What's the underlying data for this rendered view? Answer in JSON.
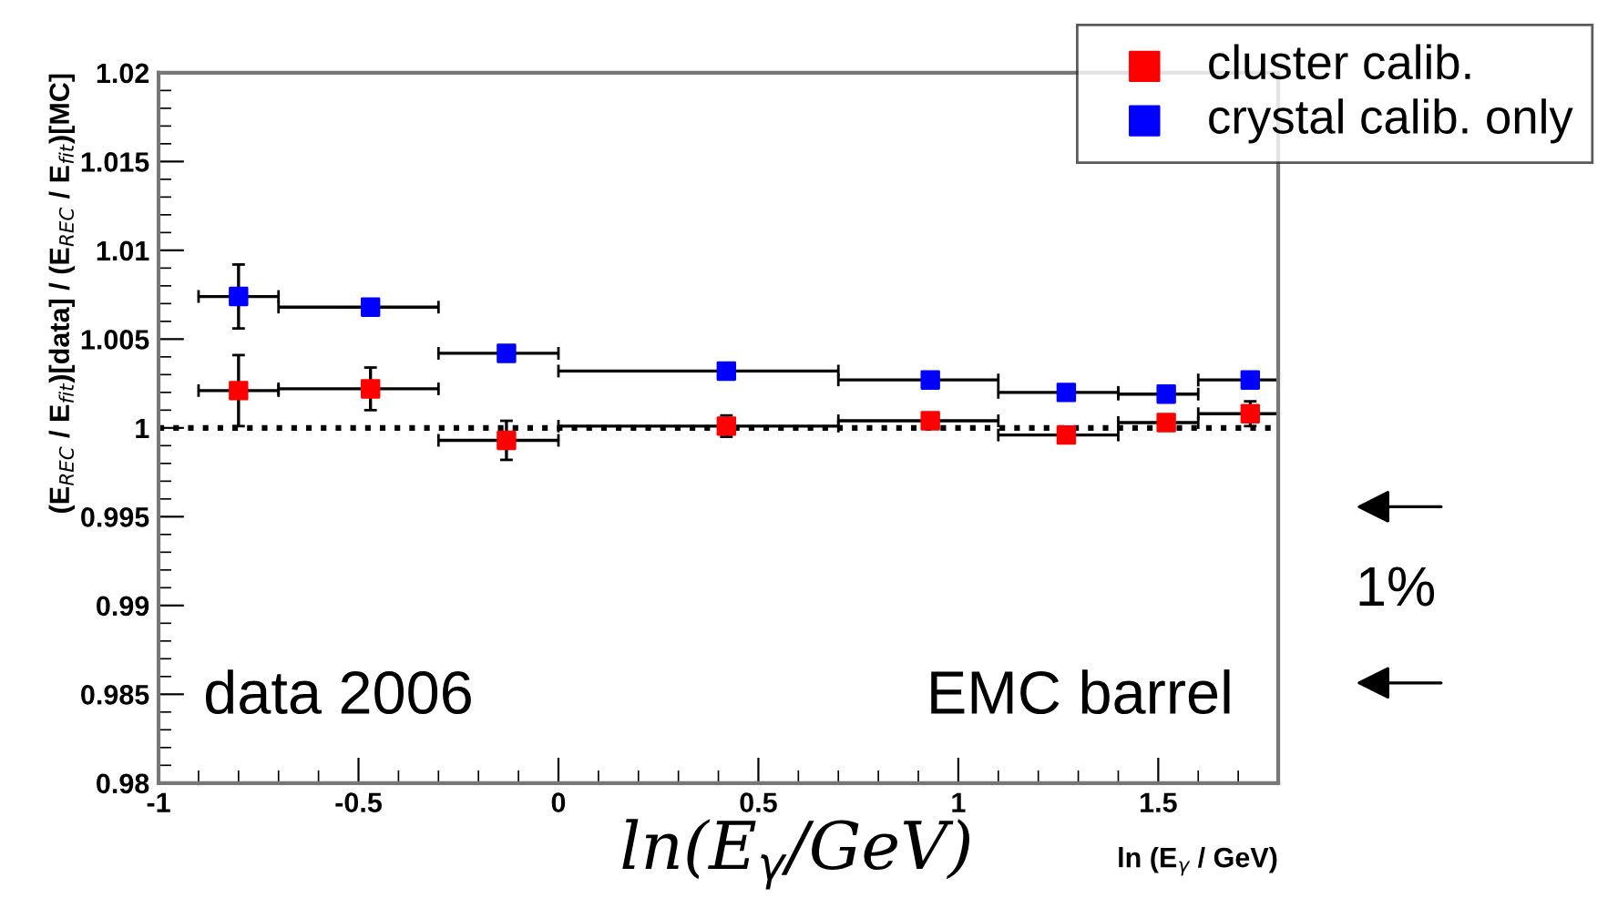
{
  "chart_data": {
    "type": "scatter",
    "xlabel": "ln (E$_{γ}$ / GeV)",
    "ylabel": "(E$_{REC}$ / E$_{fit}$)[data] / (E$_{REC}$ / E$_{fit}$)[MC]",
    "x": [
      -0.8,
      -0.47,
      -0.13,
      0.42,
      0.93,
      1.27,
      1.52,
      1.73
    ],
    "series": [
      {
        "name": "cluster calib.",
        "color": "#ff0000",
        "values": [
          1.0021,
          1.0022,
          0.9993,
          1.0001,
          1.0004,
          0.9996,
          1.0003,
          1.0008
        ],
        "errors": [
          0.002,
          0.0012,
          0.0011,
          0.0006,
          null,
          null,
          null,
          0.0007
        ],
        "xerrors": [
          [
            -0.9,
            -0.7
          ],
          [
            -0.7,
            -0.3
          ],
          [
            -0.3,
            0.0
          ],
          [
            0.0,
            0.7
          ],
          [
            0.7,
            1.1
          ],
          [
            1.1,
            1.4
          ],
          [
            1.4,
            1.6
          ],
          [
            1.6,
            1.8
          ]
        ]
      },
      {
        "name": "crystal calib. only",
        "color": "#0000ff",
        "values": [
          1.0074,
          1.0068,
          1.0042,
          1.0032,
          1.0027,
          1.002,
          1.0019,
          1.0027
        ],
        "errors": [
          0.0018,
          null,
          null,
          null,
          null,
          null,
          null,
          null
        ],
        "xerrors": [
          [
            -0.9,
            -0.7
          ],
          [
            -0.7,
            -0.3
          ],
          [
            -0.3,
            0.0
          ],
          [
            0.0,
            0.7
          ],
          [
            0.7,
            1.1
          ],
          [
            1.1,
            1.4
          ],
          [
            1.4,
            1.6
          ],
          [
            1.6,
            1.8
          ]
        ]
      }
    ],
    "xlim": [
      -1,
      1.8
    ],
    "xticks": [
      -1,
      -0.5,
      0,
      0.5,
      1,
      1.5
    ],
    "ylim": [
      0.98,
      1.02
    ],
    "yticks": [
      0.98,
      0.985,
      0.99,
      0.995,
      1,
      1.005,
      1.01,
      1.015,
      1.02
    ],
    "ref_lines": [
      {
        "axis": "y",
        "value": 1,
        "color": "#000000",
        "line_style": "dotted"
      }
    ],
    "annotations": [
      "data 2006",
      "EMC barrel",
      "1%",
      "ln(E$_{γ}$/GeV)"
    ],
    "marker": "square",
    "legend": "top right",
    "grid": false
  }
}
